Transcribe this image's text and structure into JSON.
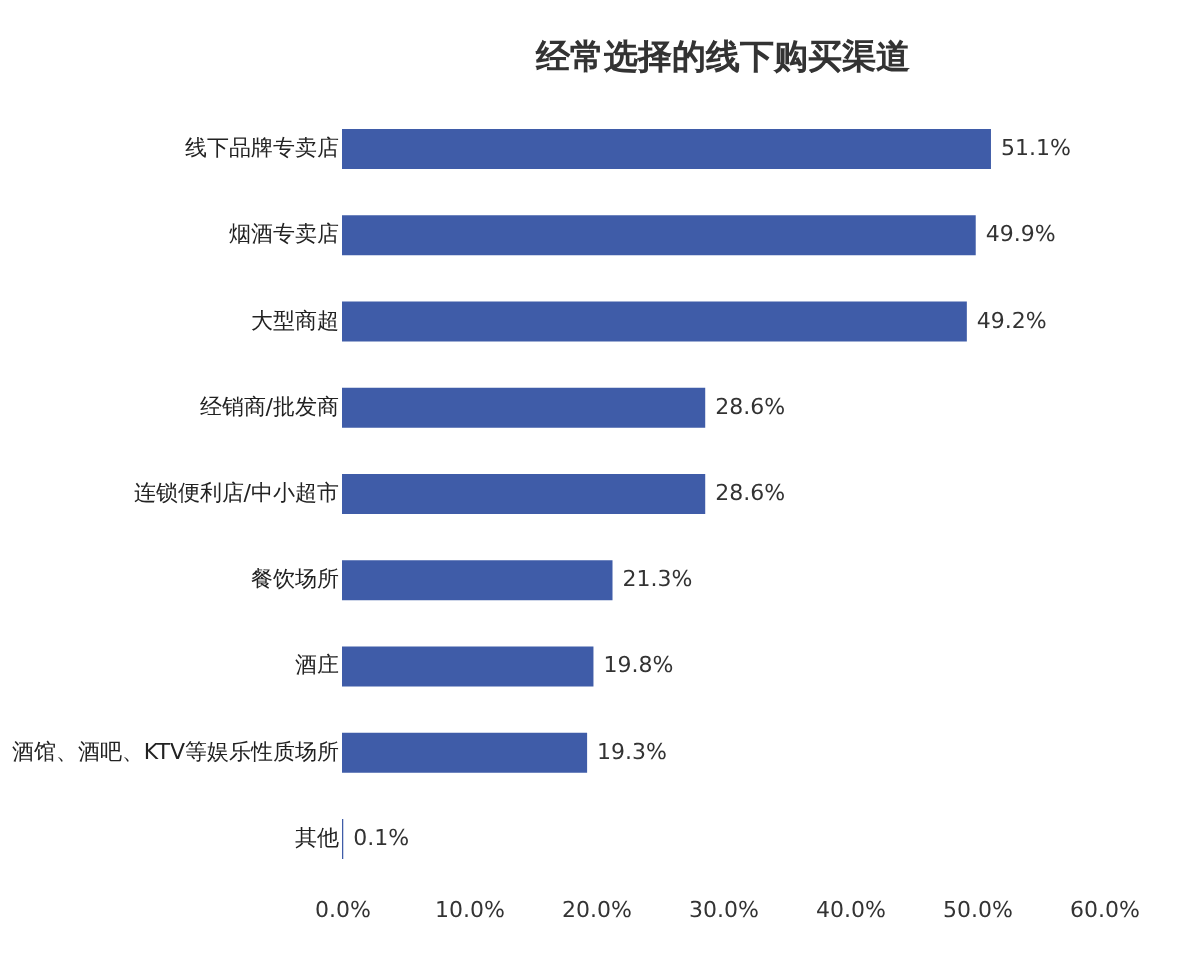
{
  "chart_data": {
    "type": "bar",
    "orientation": "horizontal",
    "title": "经常选择的线下购买渠道",
    "categories": [
      "线下品牌专卖店",
      "烟酒专卖店",
      "大型商超",
      "经销商/批发商",
      "连锁便利店/中小超市",
      "餐饮场所",
      "酒庄",
      "酒馆、酒吧、KTV等娱乐性质场所",
      "其他"
    ],
    "values": [
      51.1,
      49.9,
      49.2,
      28.6,
      28.6,
      21.3,
      19.8,
      19.3,
      0.1
    ],
    "value_labels": [
      "51.1%",
      "49.9%",
      "49.2%",
      "28.6%",
      "28.6%",
      "21.3%",
      "19.8%",
      "19.3%",
      "0.1%"
    ],
    "color": "#3f5ca8",
    "xlim": [
      0,
      60
    ],
    "xticks": [
      {
        "value": 0,
        "label": "0.0%"
      },
      {
        "value": 10,
        "label": "10.0%"
      },
      {
        "value": 20,
        "label": "20.0%"
      },
      {
        "value": 30,
        "label": "30.0%"
      },
      {
        "value": 40,
        "label": "40.0%"
      },
      {
        "value": 50,
        "label": "50.0%"
      },
      {
        "value": 60,
        "label": "60.0%"
      }
    ],
    "grid": false
  }
}
